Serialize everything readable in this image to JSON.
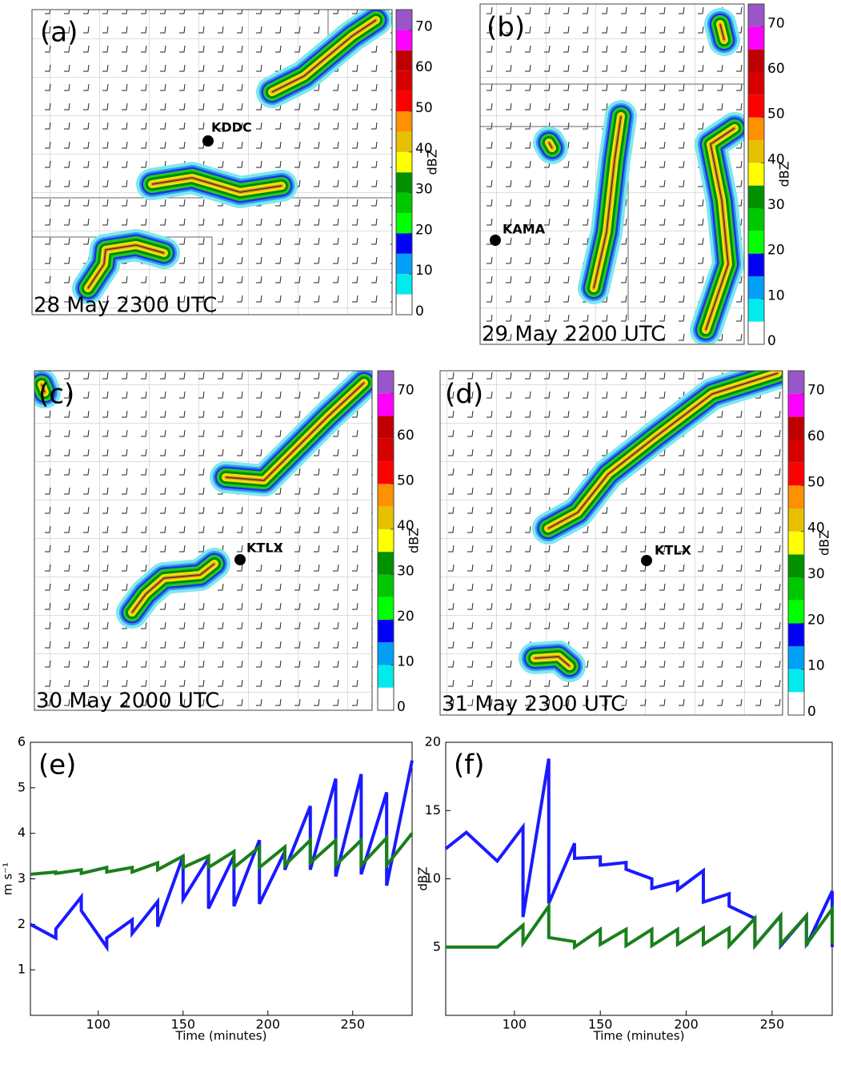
{
  "panels": [
    {
      "label": "(a)",
      "time": "28 May 2300 UTC",
      "station": "KDDC"
    },
    {
      "label": "(b)",
      "time": "29 May 2200 UTC",
      "station": "KAMA"
    },
    {
      "label": "(c)",
      "time": "30 May 2000 UTC",
      "station": "KTLX"
    },
    {
      "label": "(d)",
      "time": "31 May 2300 UTC",
      "station": "KTLX"
    }
  ],
  "colorbar": {
    "label": "dBZ",
    "lim": [
      0,
      75
    ],
    "ticks": [
      0,
      10,
      20,
      30,
      40,
      50,
      60,
      70
    ],
    "colors": [
      "#ffffff",
      "#00ecec",
      "#01a0f6",
      "#0000f6",
      "#00ff00",
      "#00c800",
      "#009000",
      "#ffff00",
      "#e7c000",
      "#ff9000",
      "#ff0000",
      "#d60000",
      "#c00000",
      "#ff00ff",
      "#9955c9"
    ]
  },
  "chart_data": [
    {
      "type": "line",
      "annotation": "(e)",
      "xlabel": "Time (minutes)",
      "ylabel": "m s⁻¹",
      "x": [
        60,
        75,
        75,
        90,
        90,
        105,
        105,
        120,
        120,
        135,
        135,
        150,
        150,
        165,
        165,
        180,
        180,
        195,
        195,
        210,
        210,
        225,
        225,
        240,
        240,
        255,
        255,
        270,
        270,
        285
      ],
      "xlim": [
        60,
        285
      ],
      "xticks": [
        100,
        150,
        200,
        250
      ],
      "ylim": [
        0,
        6
      ],
      "yticks": [
        1,
        2,
        3,
        4,
        5,
        6
      ],
      "series": [
        {
          "color": "#1a1aff",
          "values": [
            2.0,
            1.7,
            1.9,
            2.6,
            2.3,
            1.5,
            1.7,
            2.1,
            1.8,
            2.5,
            1.95,
            3.5,
            2.55,
            3.45,
            2.35,
            3.5,
            2.4,
            3.85,
            2.45,
            3.6,
            3.2,
            4.6,
            3.2,
            5.2,
            3.05,
            5.3,
            3.1,
            4.9,
            2.85,
            5.6
          ]
        },
        {
          "color": "#1a7f1a",
          "values": [
            3.1,
            3.15,
            3.12,
            3.2,
            3.12,
            3.25,
            3.15,
            3.25,
            3.15,
            3.35,
            3.2,
            3.5,
            3.25,
            3.5,
            3.25,
            3.6,
            3.25,
            3.7,
            3.25,
            3.7,
            3.3,
            3.85,
            3.35,
            3.85,
            3.3,
            3.85,
            3.3,
            3.9,
            3.3,
            4.0
          ]
        }
      ]
    },
    {
      "type": "line",
      "annotation": "(f)",
      "xlabel": "Time (minutes)",
      "ylabel": "dBZ",
      "x": [
        60,
        72,
        90,
        105,
        105,
        120,
        120,
        135,
        135,
        150,
        150,
        165,
        165,
        180,
        180,
        195,
        195,
        210,
        210,
        225,
        225,
        240,
        240,
        255,
        255,
        270,
        270,
        285,
        285
      ],
      "xlim": [
        60,
        285
      ],
      "xticks": [
        100,
        150,
        200,
        250
      ],
      "ylim": [
        0,
        20
      ],
      "yticks": [
        5,
        10,
        15,
        20
      ],
      "series": [
        {
          "color": "#1a1aff",
          "values": [
            12.2,
            13.4,
            11.3,
            13.8,
            7.2,
            18.8,
            8.2,
            12.6,
            11.5,
            11.6,
            11.0,
            11.2,
            10.7,
            10.0,
            9.3,
            9.8,
            9.2,
            10.6,
            8.3,
            8.9,
            8.0,
            7.1,
            5.1,
            7.3,
            5.1,
            7.3,
            5.1,
            9.1,
            5.0
          ]
        },
        {
          "color": "#1a7f1a",
          "values": [
            5.0,
            5.0,
            5.0,
            6.6,
            5.3,
            8.0,
            5.7,
            5.4,
            5.0,
            6.3,
            5.2,
            6.3,
            5.1,
            6.3,
            5.1,
            6.3,
            5.2,
            6.4,
            5.2,
            6.4,
            5.1,
            7.1,
            5.1,
            7.3,
            5.2,
            7.3,
            5.2,
            7.8,
            5.2
          ]
        }
      ]
    }
  ]
}
